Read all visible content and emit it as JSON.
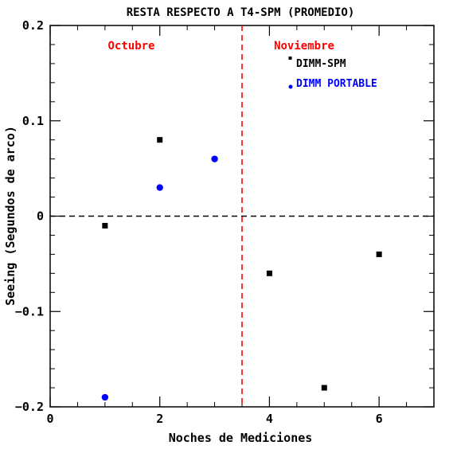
{
  "chart_data": {
    "type": "scatter",
    "title": "RESTA RESPECTO A T4-SPM (PROMEDIO)",
    "xlabel": "Noches de Mediciones",
    "ylabel": "Seeing (Segundos de arco)",
    "xlim": [
      0,
      7
    ],
    "ylim": [
      -0.2,
      0.2
    ],
    "xticks": [
      {
        "value": 0,
        "label": "0"
      },
      {
        "value": 2,
        "label": "2"
      },
      {
        "value": 4,
        "label": "4"
      },
      {
        "value": 6,
        "label": "6"
      }
    ],
    "yticks": [
      {
        "value": -0.2,
        "label": "−0.2"
      },
      {
        "value": -0.1,
        "label": "−0.1"
      },
      {
        "value": 0,
        "label": "0"
      },
      {
        "value": 0.1,
        "label": "0.1"
      },
      {
        "value": 0.2,
        "label": "0.2"
      }
    ],
    "series": [
      {
        "name": "DIMM-SPM",
        "marker": "square",
        "color": "#000000",
        "x": [
          1,
          2,
          4,
          5,
          6
        ],
        "y": [
          -0.01,
          0.08,
          -0.06,
          -0.18,
          -0.04
        ]
      },
      {
        "name": "DIMM PORTABLE",
        "marker": "circle",
        "color": "#0000ff",
        "x": [
          1,
          2,
          3
        ],
        "y": [
          -0.19,
          0.03,
          0.06
        ]
      }
    ],
    "reference_lines": [
      {
        "orientation": "horizontal",
        "value": 0,
        "color": "#000000",
        "style": "dashed"
      },
      {
        "orientation": "vertical",
        "value": 3.5,
        "color": "#ff0000",
        "style": "dashed"
      }
    ],
    "annotations": [
      {
        "text": "Octubre",
        "color": "#ff0000"
      },
      {
        "text": "Noviembre",
        "color": "#ff0000"
      }
    ],
    "legend_position": "top-right",
    "grid": false
  }
}
